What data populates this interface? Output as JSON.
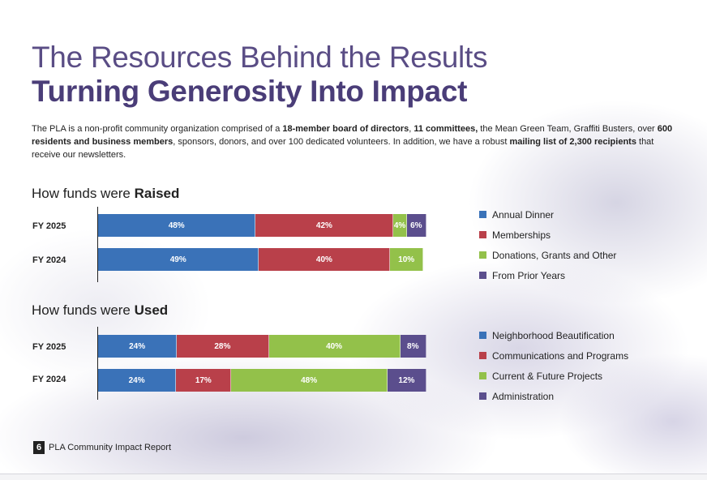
{
  "title_line1": "The Resources Behind the Results",
  "title_line2": "Turning Generosity Into Impact",
  "intro": {
    "p1": "The PLA is a non-profit community organization comprised of a ",
    "b1": "18-member board of directors",
    "p2": ", ",
    "b2": "11 committees,",
    "p3": " the Mean Green Team, Graffiti Busters, over ",
    "b3": "600 residents and business members",
    "p4": ", sponsors, donors, and over 100 dedicated volunteers. In addition, we have a robust ",
    "b4": "mailing list of 2,300 recipients",
    "p5": " that receive our newsletters."
  },
  "footer": {
    "page_number": "6",
    "label": "PLA Community Impact Report"
  },
  "chart_data": [
    {
      "type": "bar",
      "stacked": true,
      "orientation": "horizontal",
      "percent": true,
      "title_prefix": "How funds were ",
      "title_emphasis": "Raised",
      "categories": [
        "FY 2025",
        "FY 2024"
      ],
      "series": [
        {
          "name": "Annual Dinner",
          "color": "#3a72b8",
          "values": [
            48,
            49
          ]
        },
        {
          "name": "Memberships",
          "color": "#b9404a",
          "values": [
            42,
            40
          ]
        },
        {
          "name": "Donations, Grants and Other",
          "color": "#93c14a",
          "values": [
            4,
            10
          ]
        },
        {
          "name": "From Prior Years",
          "color": "#5b4e8d",
          "values": [
            6,
            0
          ]
        }
      ],
      "xlim": [
        0,
        100
      ],
      "legend_position": "right"
    },
    {
      "type": "bar",
      "stacked": true,
      "orientation": "horizontal",
      "percent": true,
      "title_prefix": "How funds were ",
      "title_emphasis": "Used",
      "categories": [
        "FY 2025",
        "FY 2024"
      ],
      "series": [
        {
          "name": "Neighborhood Beautification",
          "color": "#3a72b8",
          "values": [
            24,
            24
          ]
        },
        {
          "name": "Communications and Programs",
          "color": "#b9404a",
          "values": [
            28,
            17
          ]
        },
        {
          "name": "Current & Future Projects",
          "color": "#93c14a",
          "values": [
            40,
            48
          ]
        },
        {
          "name": "Administration",
          "color": "#5b4e8d",
          "values": [
            8,
            12
          ]
        }
      ],
      "xlim": [
        0,
        100
      ],
      "legend_position": "right"
    }
  ]
}
